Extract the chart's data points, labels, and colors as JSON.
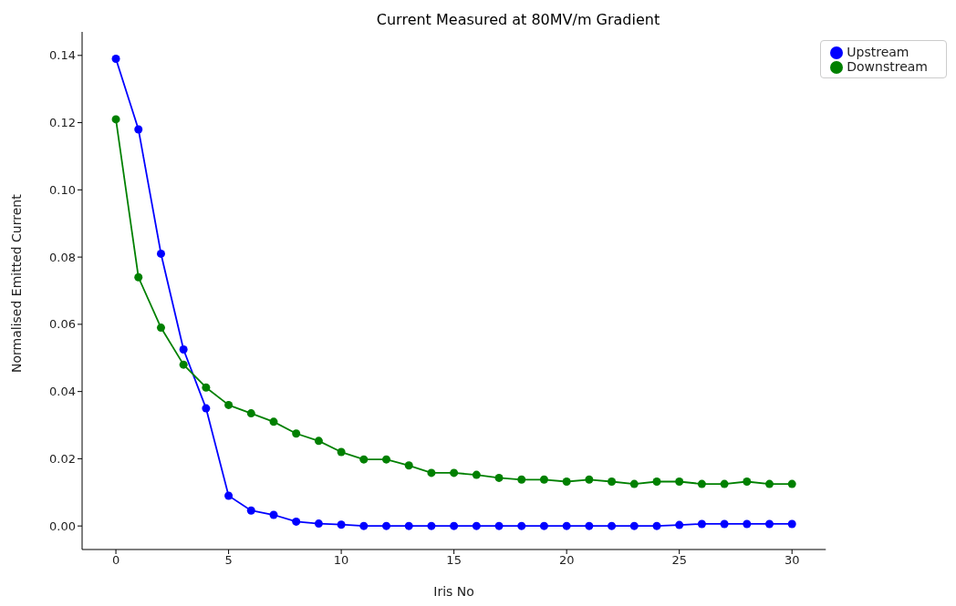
{
  "chart_data": {
    "type": "line",
    "title": "Current Measured at 80MV/m Gradient",
    "xlabel": "Iris No",
    "ylabel": "Normalised Emitted Current",
    "x": [
      0,
      1,
      2,
      3,
      4,
      5,
      6,
      7,
      8,
      9,
      10,
      11,
      12,
      13,
      14,
      15,
      16,
      17,
      18,
      19,
      20,
      21,
      22,
      23,
      24,
      25,
      26,
      27,
      28,
      29,
      30
    ],
    "series": [
      {
        "name": "Upstream",
        "color": "#0000ff",
        "values": [
          0.139,
          0.118,
          0.081,
          0.0525,
          0.035,
          0.009,
          0.0046,
          0.0033,
          0.0013,
          0.0007,
          0.0004,
          0,
          0,
          0,
          0,
          0,
          0,
          0,
          0,
          0,
          0,
          0,
          0,
          0,
          0,
          0.0003,
          0.0006,
          0.0006,
          0.0006,
          0.0006,
          0.0006
        ]
      },
      {
        "name": "Downstream",
        "color": "#008000",
        "values": [
          0.121,
          0.074,
          0.059,
          0.048,
          0.0412,
          0.036,
          0.0335,
          0.031,
          0.0275,
          0.0253,
          0.022,
          0.0198,
          0.0198,
          0.018,
          0.0158,
          0.0158,
          0.0152,
          0.0143,
          0.0138,
          0.0138,
          0.0132,
          0.0138,
          0.0132,
          0.0125,
          0.0132,
          0.0132,
          0.0125,
          0.0125,
          0.0132,
          0.0125,
          0.0125
        ]
      }
    ],
    "xlim": [
      -1.5,
      31.5
    ],
    "xticks": [
      0,
      5,
      10,
      15,
      20,
      25,
      30
    ],
    "ylim": [
      -0.007,
      0.147
    ],
    "yticks": [
      {
        "value": 0,
        "label": "0.00"
      },
      0.02,
      0.04,
      0.06,
      0.08,
      {
        "value": 0.1,
        "label": "0.10"
      },
      0.12,
      0.14
    ],
    "grid": false,
    "legend": "top right",
    "marker": "circle",
    "line_style": "solid"
  }
}
